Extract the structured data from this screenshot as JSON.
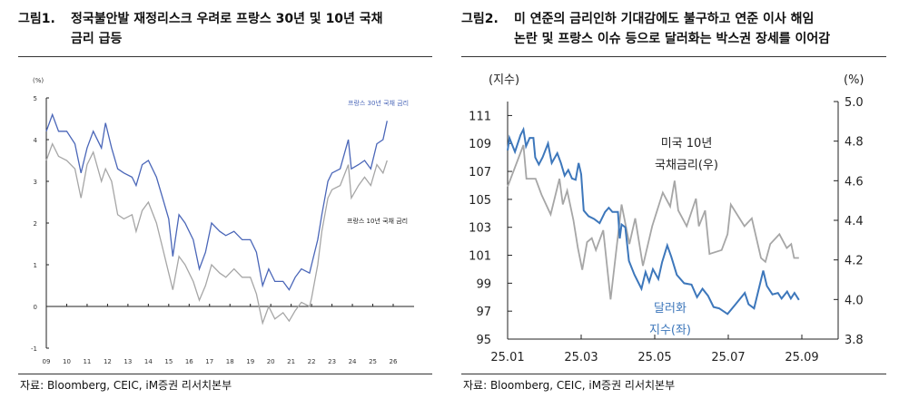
{
  "figure1": {
    "number": "그림1.",
    "title_line1": "정국불안발 재정리스크 우려로 프랑스 30년 및 10년 국채",
    "title_line2": "금리 급등",
    "source": "자료: Bloomberg, CEIC, iM증권 리서치본부"
  },
  "figure2": {
    "number": "그림2.",
    "title_line1": "미 연준의 금리인하 기대감에도 불구하고 연준 이사 해임",
    "title_line2": "논란 및 프랑스 이슈 등으로 달러화는 박스권 장세를 이어감",
    "source": "자료: Bloomberg, CEIC, iM증권 리서치본부"
  },
  "colors": {
    "blue": "#4a66b8",
    "gray": "#a6a6a6",
    "blue2": "#3d77bb"
  },
  "chart_data": [
    {
      "type": "line",
      "ylabel": "(%)",
      "ylim": [
        -1,
        5
      ],
      "yticks": [
        "-1",
        "0",
        "1",
        "2",
        "3",
        "4",
        "5"
      ],
      "xlim": [
        2009,
        2026
      ],
      "xticks": [
        "09",
        "10",
        "11",
        "12",
        "13",
        "14",
        "15",
        "16",
        "17",
        "18",
        "19",
        "20",
        "21",
        "22",
        "23",
        "24",
        "25",
        "26"
      ],
      "series": [
        {
          "name": "프랑스 30년 국채 금리",
          "color": "#4a66b8",
          "x": [
            2009.0,
            2009.3,
            2009.6,
            2010.0,
            2010.4,
            2010.7,
            2011.0,
            2011.3,
            2011.7,
            2011.9,
            2012.2,
            2012.5,
            2012.8,
            2013.2,
            2013.4,
            2013.7,
            2014.0,
            2014.4,
            2014.7,
            2015.0,
            2015.2,
            2015.5,
            2015.8,
            2016.2,
            2016.5,
            2016.8,
            2017.1,
            2017.5,
            2017.8,
            2018.2,
            2018.6,
            2019.0,
            2019.3,
            2019.6,
            2019.9,
            2020.2,
            2020.6,
            2020.9,
            2021.2,
            2021.5,
            2021.9,
            2022.0,
            2022.3,
            2022.5,
            2022.8,
            2023.0,
            2023.4,
            2023.8,
            2023.95,
            2024.3,
            2024.6,
            2024.9,
            2025.2,
            2025.5,
            2025.7
          ],
          "y": [
            4.2,
            4.6,
            4.2,
            4.2,
            3.9,
            3.2,
            3.8,
            4.2,
            3.8,
            4.4,
            3.8,
            3.3,
            3.2,
            3.1,
            2.9,
            3.4,
            3.5,
            3.1,
            2.6,
            2.1,
            1.2,
            2.2,
            2.0,
            1.6,
            0.9,
            1.3,
            2.0,
            1.8,
            1.7,
            1.8,
            1.6,
            1.6,
            1.3,
            0.5,
            0.9,
            0.6,
            0.6,
            0.4,
            0.7,
            0.9,
            0.8,
            1.0,
            1.6,
            2.2,
            3.0,
            3.2,
            3.3,
            4.0,
            3.3,
            3.4,
            3.5,
            3.3,
            3.9,
            4.0,
            4.45
          ]
        },
        {
          "name": "프랑스 10년 국채 금리",
          "color": "#a6a6a6",
          "x": [
            2009.0,
            2009.3,
            2009.6,
            2010.0,
            2010.4,
            2010.7,
            2011.0,
            2011.3,
            2011.7,
            2011.9,
            2012.2,
            2012.5,
            2012.8,
            2013.2,
            2013.4,
            2013.7,
            2014.0,
            2014.4,
            2014.7,
            2015.0,
            2015.2,
            2015.5,
            2015.8,
            2016.2,
            2016.5,
            2016.8,
            2017.1,
            2017.5,
            2017.8,
            2018.2,
            2018.6,
            2019.0,
            2019.3,
            2019.6,
            2019.9,
            2020.2,
            2020.6,
            2020.9,
            2021.2,
            2021.5,
            2021.9,
            2022.0,
            2022.3,
            2022.5,
            2022.8,
            2023.0,
            2023.4,
            2023.8,
            2023.95,
            2024.3,
            2024.6,
            2024.9,
            2025.2,
            2025.5,
            2025.7
          ],
          "y": [
            3.5,
            3.9,
            3.6,
            3.5,
            3.3,
            2.6,
            3.4,
            3.7,
            3.0,
            3.3,
            3.0,
            2.2,
            2.1,
            2.2,
            1.8,
            2.3,
            2.5,
            2.0,
            1.4,
            0.8,
            0.4,
            1.2,
            1.0,
            0.6,
            0.15,
            0.5,
            1.0,
            0.8,
            0.7,
            0.9,
            0.7,
            0.7,
            0.3,
            -0.4,
            0.0,
            -0.3,
            -0.15,
            -0.35,
            -0.1,
            0.1,
            0.0,
            0.2,
            1.0,
            1.8,
            2.6,
            2.8,
            2.9,
            3.4,
            2.6,
            2.9,
            3.1,
            2.9,
            3.4,
            3.2,
            3.5
          ]
        }
      ]
    },
    {
      "type": "line",
      "ylabel_left": "(지수)",
      "ylabel_right": "(%)",
      "ylim_left": [
        95,
        112
      ],
      "ylim_right": [
        3.8,
        5.0
      ],
      "yticks_left": [
        "95",
        "97",
        "99",
        "101",
        "103",
        "105",
        "107",
        "109",
        "111"
      ],
      "yticks_right": [
        "3.8",
        "4.0",
        "4.2",
        "4.4",
        "4.6",
        "4.8",
        "5.0"
      ],
      "x_unit": "months since 2025-01",
      "xlim": [
        0,
        9
      ],
      "xticks": [
        "25.01",
        "25.03",
        "25.05",
        "25.07",
        "25.09"
      ],
      "series": [
        {
          "name": "달러화 지수(좌)",
          "axis": "left",
          "color": "#3d77bb",
          "x": [
            0,
            0.05,
            0.2,
            0.35,
            0.43,
            0.5,
            0.6,
            0.7,
            0.75,
            0.85,
            0.95,
            1.1,
            1.2,
            1.35,
            1.45,
            1.55,
            1.65,
            1.75,
            1.85,
            1.93,
            2.0,
            2.07,
            2.2,
            2.35,
            2.5,
            2.65,
            2.75,
            2.85,
            3.0,
            3.05,
            3.1,
            3.2,
            3.3,
            3.45,
            3.64,
            3.75,
            3.85,
            3.95,
            4.1,
            4.2,
            4.34,
            4.45,
            4.6,
            4.8,
            5.0,
            5.15,
            5.3,
            5.45,
            5.6,
            5.75,
            5.98,
            6.2,
            6.45,
            6.55,
            6.7,
            6.95,
            7.05,
            7.2,
            7.35,
            7.45,
            7.6,
            7.7,
            7.8,
            7.92
          ],
          "y": [
            108.5,
            109.4,
            108.4,
            109.6,
            110.0,
            108.8,
            109.4,
            109.4,
            108.0,
            107.5,
            108.0,
            109.0,
            107.6,
            108.3,
            107.6,
            106.7,
            107.1,
            106.5,
            106.4,
            107.6,
            106.8,
            104.2,
            103.8,
            103.6,
            103.3,
            104.1,
            104.4,
            104.1,
            104.1,
            102.2,
            103.2,
            103.0,
            100.6,
            99.6,
            98.6,
            99.8,
            99.1,
            100.0,
            99.3,
            100.5,
            101.7,
            100.9,
            99.6,
            99.0,
            98.9,
            98.0,
            98.6,
            98.1,
            97.3,
            97.2,
            96.8,
            97.5,
            98.3,
            97.5,
            97.2,
            99.9,
            98.8,
            98.2,
            98.3,
            97.9,
            98.4,
            97.9,
            98.3,
            97.8
          ]
        },
        {
          "name": "미국 10년 국채금리(우)",
          "axis": "right",
          "color": "#a6a6a6",
          "x": [
            0,
            0.43,
            0.51,
            0.76,
            0.92,
            1.17,
            1.41,
            1.5,
            1.62,
            1.79,
            1.91,
            2.03,
            2.16,
            2.29,
            2.4,
            2.6,
            2.8,
            3.1,
            3.31,
            3.47,
            3.68,
            3.93,
            4.22,
            4.42,
            4.54,
            4.64,
            4.87,
            5.12,
            5.2,
            5.37,
            5.49,
            5.82,
            5.98,
            6.07,
            6.44,
            6.64,
            6.89,
            7.01,
            7.14,
            7.39,
            7.59,
            7.71,
            7.79,
            7.92
          ],
          "y": [
            4.57,
            4.78,
            4.61,
            4.61,
            4.53,
            4.43,
            4.61,
            4.48,
            4.55,
            4.4,
            4.26,
            4.15,
            4.29,
            4.31,
            4.25,
            4.35,
            4.0,
            4.48,
            4.28,
            4.41,
            4.17,
            4.37,
            4.54,
            4.47,
            4.6,
            4.45,
            4.37,
            4.51,
            4.37,
            4.45,
            4.23,
            4.25,
            4.33,
            4.48,
            4.37,
            4.41,
            4.21,
            4.19,
            4.28,
            4.33,
            4.26,
            4.28,
            4.21,
            4.21
          ]
        }
      ],
      "annotations": {
        "ust_line1": "미국 10년",
        "ust_line2": "국채금리(우)",
        "dxy_line1": "달러화",
        "dxy_line2": "지수(좌)"
      }
    }
  ]
}
